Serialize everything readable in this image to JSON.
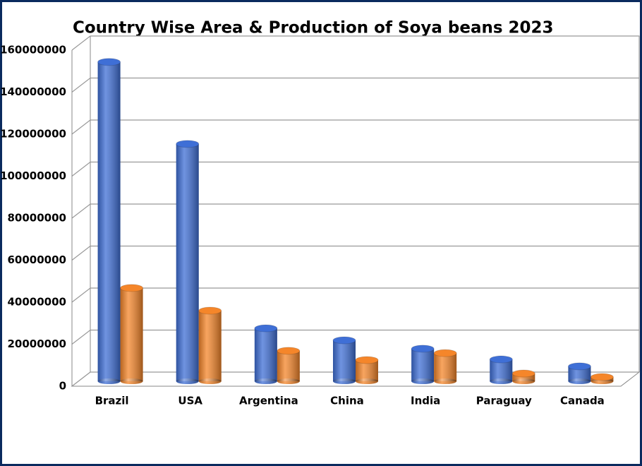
{
  "chart_data": {
    "type": "bar3d",
    "title": "Country Wise Area & Production of Soya beans 2023",
    "categories": [
      "Brazil",
      "USA",
      "Argentina",
      "China",
      "India",
      "Paraguay",
      "Canada"
    ],
    "series": [
      {
        "color": "#3f6fd6",
        "values": [
          152000000,
          113000000,
          25200000,
          19500000,
          15500000,
          10400000,
          7100000
        ]
      },
      {
        "color": "#f5862a",
        "values": [
          44400000,
          33600000,
          14500000,
          10100000,
          13400000,
          3700000,
          2000000
        ]
      }
    ],
    "ylim": [
      0,
      160000000
    ],
    "yticks": [
      0,
      20000000,
      40000000,
      60000000,
      80000000,
      100000000,
      120000000,
      140000000,
      160000000
    ],
    "grid": true
  }
}
